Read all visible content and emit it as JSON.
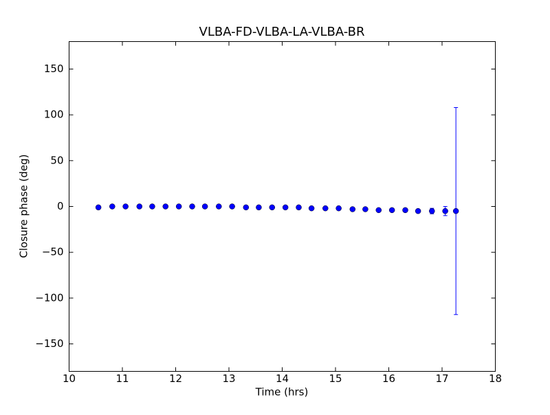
{
  "chart_data": {
    "type": "errorbar",
    "title": "VLBA-FD-VLBA-LA-VLBA-BR",
    "x_label": "Time (hrs)",
    "y_label": "Closure phase (deg)",
    "x": [
      10.55,
      10.81,
      11.06,
      11.32,
      11.56,
      11.81,
      12.06,
      12.31,
      12.55,
      12.81,
      13.06,
      13.32,
      13.56,
      13.81,
      14.06,
      14.31,
      14.55,
      14.81,
      15.06,
      15.32,
      15.56,
      15.81,
      16.06,
      16.31,
      16.55,
      16.81,
      17.06,
      17.26
    ],
    "values": [
      -1,
      0,
      0,
      0,
      0,
      0,
      0,
      0,
      0,
      0,
      0,
      -1,
      -1,
      -1,
      -1,
      -1,
      -2,
      -2,
      -2,
      -3,
      -3,
      -4,
      -4,
      -4,
      -5,
      -5,
      -5,
      -5
    ],
    "errors": [
      2,
      1,
      1,
      1,
      1,
      1,
      1,
      1,
      1,
      1,
      1,
      1,
      1,
      1,
      1,
      1,
      1,
      1,
      1,
      1,
      1,
      1,
      1,
      2,
      2,
      3,
      5,
      113
    ],
    "color": "#0000ff",
    "xlim": [
      10,
      18
    ],
    "xticks": [
      10,
      11,
      12,
      13,
      14,
      15,
      16,
      17,
      18
    ],
    "ylim": [
      -180,
      180
    ],
    "yticks": [
      {
        "value": -150,
        "label": "−150"
      },
      {
        "value": -100,
        "label": "−100"
      },
      {
        "value": -50,
        "label": "−50"
      },
      0,
      50,
      100,
      150
    ]
  }
}
